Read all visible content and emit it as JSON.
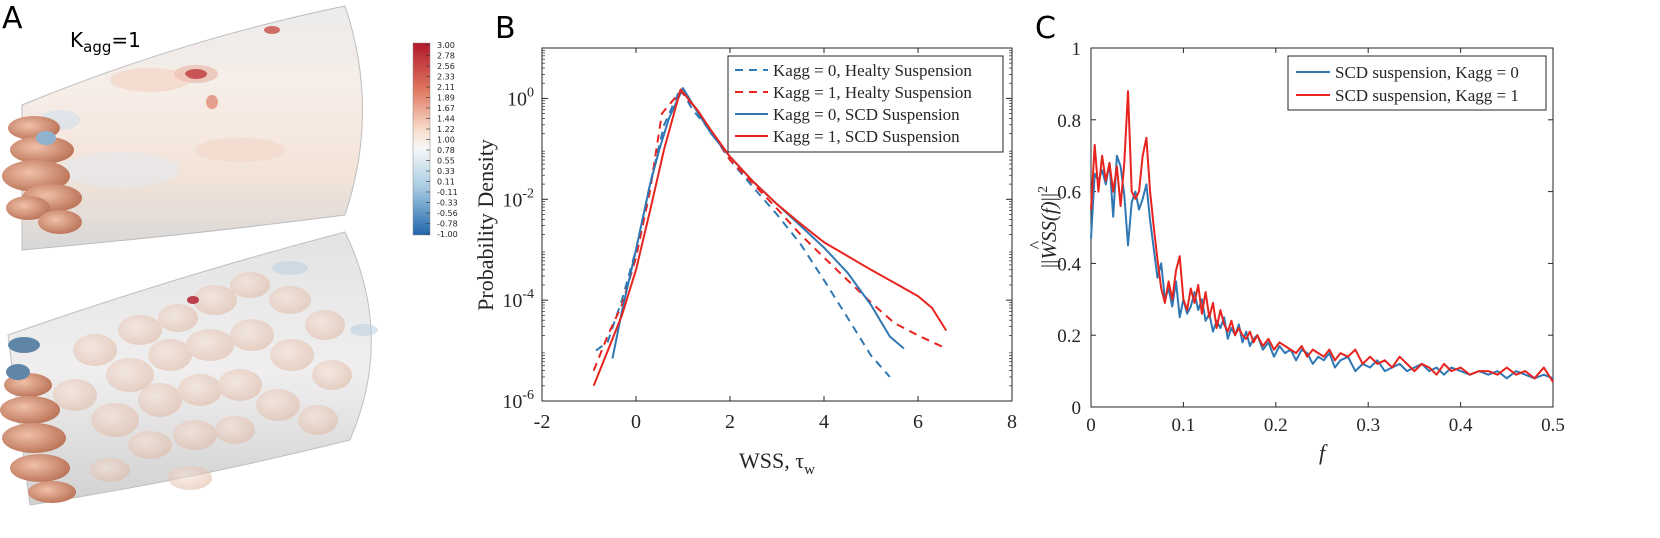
{
  "panel_a": {
    "label": "A",
    "kagg_symbol": "K",
    "kagg_sub": "agg",
    "kagg_value": "=1",
    "colorbar_ticks": [
      "3.00",
      "2.78",
      "2.56",
      "2.33",
      "2.11",
      "1.89",
      "1.67",
      "1.44",
      "1.22",
      "1.00",
      "0.78",
      "0.55",
      "0.33",
      "0.11",
      "-0.11",
      "-0.33",
      "-0.56",
      "-0.78",
      "-1.00"
    ],
    "colors": {
      "high": "#b2182b",
      "mid": "#f7f7f7",
      "low": "#2166ac",
      "cell": "#d9987a"
    }
  },
  "chart_data": [
    {
      "panel": "B",
      "type": "line",
      "title": "",
      "xlabel": "WSS, τ",
      "xlabel_sub": "w",
      "ylabel": "Probability Density",
      "xscale": "linear",
      "yscale": "log",
      "xlim": [
        -2,
        8
      ],
      "ylim": [
        1e-06,
        10
      ],
      "xticks": [
        -2,
        0,
        2,
        4,
        6,
        8
      ],
      "yticks": [
        {
          "value": 1e-06,
          "base": "10",
          "exp": "-6"
        },
        {
          "value": 0.0001,
          "base": "10",
          "exp": "-4"
        },
        {
          "value": 0.01,
          "base": "10",
          "exp": "-2"
        },
        {
          "value": 1,
          "base": "10",
          "exp": "0"
        }
      ],
      "legend_position": "top-right",
      "series": [
        {
          "name": "Kagg = 0, Healty Suspension",
          "color": "#2f78b4",
          "dash": true,
          "x": [
            -0.85,
            -0.6,
            -0.3,
            0,
            0.3,
            0.6,
            0.95,
            1.2,
            1.6,
            2,
            2.5,
            3,
            3.5,
            4,
            4.5,
            5,
            5.4
          ],
          "y": [
            1e-05,
            1.5e-05,
            0.0001,
            0.001,
            0.02,
            0.3,
            1.6,
            0.6,
            0.22,
            0.06,
            0.017,
            0.005,
            0.0013,
            0.00025,
            4.5e-05,
            8e-06,
            3e-06
          ]
        },
        {
          "name": "Kagg = 1, Healty Suspension",
          "color": "#e8241f",
          "dash": true,
          "x": [
            -0.9,
            -0.6,
            -0.3,
            0,
            0.3,
            0.55,
            0.95,
            1.3,
            1.6,
            2,
            2.5,
            3,
            3.5,
            4,
            4.5,
            5,
            5.5,
            6,
            6.6
          ],
          "y": [
            4e-06,
            2e-05,
            8e-05,
            0.0007,
            0.015,
            0.5,
            1.4,
            0.6,
            0.22,
            0.06,
            0.02,
            0.0065,
            0.002,
            0.0007,
            0.00025,
            9e-05,
            3.5e-05,
            2e-05,
            1.1e-05
          ]
        },
        {
          "name": "Kagg = 0, SCD Suspension",
          "color": "#2f78b4",
          "dash": false,
          "x": [
            -0.5,
            -0.3,
            0,
            0.3,
            0.5,
            0.7,
            1,
            1.3,
            1.6,
            2,
            2.5,
            3,
            3.5,
            4,
            4.5,
            5,
            5.4,
            5.7
          ],
          "y": [
            7e-06,
            6e-05,
            0.001,
            0.02,
            0.1,
            0.4,
            1.6,
            0.55,
            0.2,
            0.07,
            0.022,
            0.008,
            0.003,
            0.0011,
            0.00035,
            8e-05,
            1.9e-05,
            1.1e-05
          ]
        },
        {
          "name": "Kagg = 1, SCD Suspension",
          "color": "#e8241f",
          "dash": false,
          "x": [
            -0.9,
            -0.6,
            -0.3,
            0,
            0.3,
            0.6,
            0.95,
            1.3,
            1.6,
            2,
            2.5,
            3,
            3.5,
            4,
            4.5,
            5,
            5.5,
            6,
            6.3,
            6.6
          ],
          "y": [
            2e-06,
            1e-05,
            5e-05,
            0.0004,
            0.006,
            0.1,
            1.5,
            0.6,
            0.23,
            0.07,
            0.022,
            0.008,
            0.0033,
            0.0014,
            0.00075,
            0.0004,
            0.00022,
            0.00012,
            7e-05,
            2.5e-05
          ]
        }
      ]
    },
    {
      "panel": "C",
      "type": "line",
      "title": "",
      "xlabel": "f",
      "ylabel": "||WSS(f)||²",
      "ylabel_base": "WSS",
      "ylabel_arg": "(f)",
      "ylabel_exp": "2",
      "xlim": [
        0,
        0.5
      ],
      "ylim": [
        0,
        1
      ],
      "xticks": [
        0,
        0.1,
        0.2,
        0.3,
        0.4,
        0.5
      ],
      "yticks": [
        0,
        0.2,
        0.4,
        0.6,
        0.8,
        1
      ],
      "legend_position": "top-right",
      "series": [
        {
          "name": "SCD suspension, Kagg = 0",
          "color": "#2f78b4",
          "x": [
            0,
            0.004,
            0.008,
            0.012,
            0.016,
            0.02,
            0.024,
            0.028,
            0.032,
            0.036,
            0.04,
            0.044,
            0.048,
            0.052,
            0.056,
            0.06,
            0.064,
            0.068,
            0.072,
            0.076,
            0.08,
            0.084,
            0.088,
            0.092,
            0.096,
            0.1,
            0.104,
            0.108,
            0.112,
            0.116,
            0.12,
            0.124,
            0.128,
            0.132,
            0.136,
            0.14,
            0.144,
            0.148,
            0.152,
            0.156,
            0.16,
            0.164,
            0.168,
            0.172,
            0.176,
            0.18,
            0.186,
            0.192,
            0.198,
            0.204,
            0.21,
            0.216,
            0.222,
            0.228,
            0.234,
            0.24,
            0.246,
            0.252,
            0.258,
            0.264,
            0.27,
            0.278,
            0.286,
            0.294,
            0.302,
            0.31,
            0.318,
            0.326,
            0.334,
            0.342,
            0.35,
            0.358,
            0.366,
            0.374,
            0.382,
            0.39,
            0.4,
            0.41,
            0.42,
            0.43,
            0.44,
            0.45,
            0.46,
            0.47,
            0.48,
            0.49,
            0.5
          ],
          "y": [
            0.47,
            0.65,
            0.63,
            0.66,
            0.62,
            0.68,
            0.53,
            0.7,
            0.67,
            0.59,
            0.45,
            0.57,
            0.6,
            0.55,
            0.58,
            0.62,
            0.52,
            0.44,
            0.36,
            0.4,
            0.3,
            0.33,
            0.28,
            0.35,
            0.25,
            0.3,
            0.26,
            0.28,
            0.32,
            0.27,
            0.3,
            0.24,
            0.26,
            0.21,
            0.24,
            0.22,
            0.25,
            0.19,
            0.22,
            0.2,
            0.23,
            0.18,
            0.21,
            0.17,
            0.19,
            0.2,
            0.16,
            0.18,
            0.14,
            0.17,
            0.15,
            0.16,
            0.13,
            0.16,
            0.15,
            0.12,
            0.14,
            0.13,
            0.15,
            0.11,
            0.13,
            0.14,
            0.1,
            0.12,
            0.11,
            0.13,
            0.1,
            0.11,
            0.12,
            0.1,
            0.11,
            0.12,
            0.1,
            0.11,
            0.09,
            0.11,
            0.1,
            0.09,
            0.1,
            0.09,
            0.1,
            0.08,
            0.1,
            0.09,
            0.08,
            0.09,
            0.08
          ]
        },
        {
          "name": "SCD suspension, Kagg = 1",
          "color": "#e8241f",
          "x": [
            0,
            0.004,
            0.008,
            0.012,
            0.016,
            0.02,
            0.024,
            0.028,
            0.032,
            0.036,
            0.04,
            0.044,
            0.048,
            0.052,
            0.056,
            0.06,
            0.064,
            0.068,
            0.072,
            0.076,
            0.08,
            0.084,
            0.088,
            0.092,
            0.096,
            0.1,
            0.104,
            0.108,
            0.112,
            0.116,
            0.12,
            0.124,
            0.128,
            0.132,
            0.136,
            0.14,
            0.144,
            0.148,
            0.152,
            0.156,
            0.16,
            0.164,
            0.168,
            0.172,
            0.176,
            0.18,
            0.186,
            0.192,
            0.198,
            0.204,
            0.21,
            0.216,
            0.222,
            0.228,
            0.234,
            0.24,
            0.246,
            0.252,
            0.258,
            0.264,
            0.27,
            0.278,
            0.286,
            0.294,
            0.302,
            0.31,
            0.318,
            0.326,
            0.334,
            0.342,
            0.35,
            0.358,
            0.366,
            0.374,
            0.382,
            0.39,
            0.4,
            0.41,
            0.42,
            0.43,
            0.44,
            0.45,
            0.46,
            0.47,
            0.48,
            0.49,
            0.5
          ],
          "y": [
            0.55,
            0.73,
            0.6,
            0.7,
            0.63,
            0.68,
            0.6,
            0.67,
            0.56,
            0.68,
            0.88,
            0.6,
            0.58,
            0.6,
            0.7,
            0.75,
            0.6,
            0.5,
            0.41,
            0.33,
            0.29,
            0.35,
            0.3,
            0.38,
            0.42,
            0.3,
            0.27,
            0.33,
            0.29,
            0.34,
            0.26,
            0.32,
            0.25,
            0.29,
            0.22,
            0.27,
            0.23,
            0.21,
            0.24,
            0.2,
            0.22,
            0.2,
            0.19,
            0.21,
            0.18,
            0.2,
            0.17,
            0.19,
            0.16,
            0.18,
            0.17,
            0.16,
            0.15,
            0.17,
            0.14,
            0.16,
            0.15,
            0.14,
            0.16,
            0.13,
            0.15,
            0.14,
            0.16,
            0.12,
            0.14,
            0.12,
            0.13,
            0.11,
            0.14,
            0.12,
            0.1,
            0.12,
            0.11,
            0.09,
            0.12,
            0.1,
            0.11,
            0.09,
            0.1,
            0.1,
            0.09,
            0.11,
            0.09,
            0.1,
            0.08,
            0.11,
            0.07
          ]
        }
      ]
    }
  ]
}
